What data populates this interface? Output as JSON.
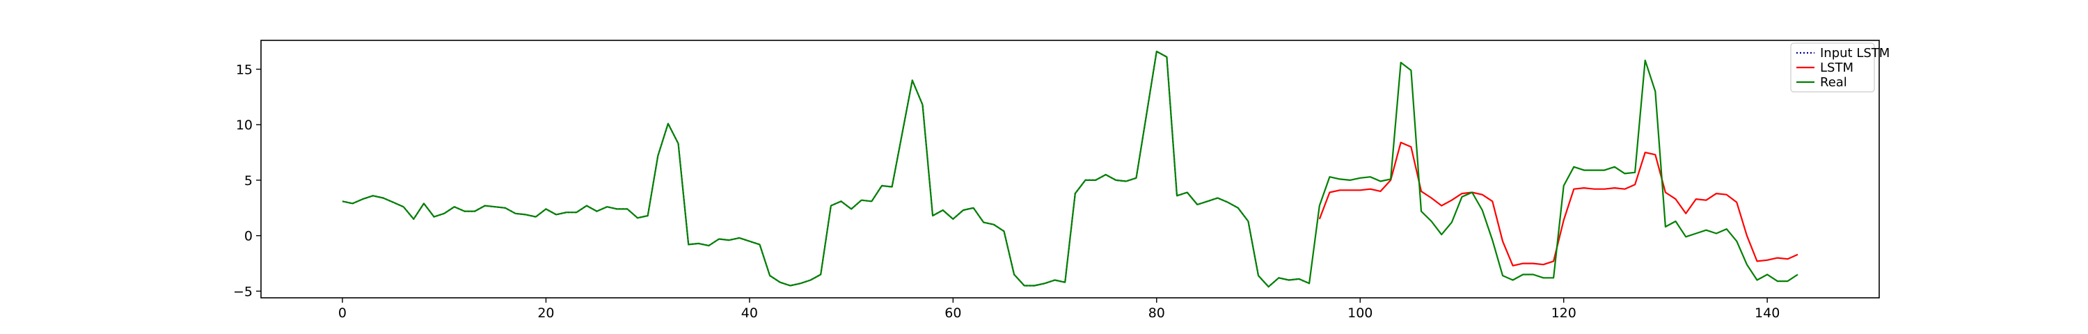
{
  "chart_data": {
    "type": "line",
    "title": "",
    "xlabel": "",
    "ylabel": "",
    "xlim": [
      -8,
      151
    ],
    "ylim": [
      -5.6,
      17.6
    ],
    "grid": false,
    "legend_position": "top-right",
    "x_ticks": [
      0,
      20,
      40,
      60,
      80,
      100,
      120,
      140
    ],
    "y_ticks": [
      -5,
      0,
      5,
      10,
      15
    ],
    "x_tick_labels": [
      "0",
      "20",
      "40",
      "60",
      "80",
      "100",
      "120",
      "140"
    ],
    "y_tick_labels": [
      "−5",
      "0",
      "5",
      "10",
      "15"
    ],
    "series": [
      {
        "name": "Input LSTM",
        "color": "#00008b",
        "style": "dotted",
        "x": [
          0,
          1,
          2,
          3,
          4,
          5,
          6,
          7,
          8,
          9,
          10,
          11,
          12,
          13,
          14,
          15,
          16,
          17,
          18,
          19,
          20,
          21,
          22,
          23,
          24,
          25,
          26,
          27,
          28,
          29,
          30,
          31,
          32,
          33,
          34,
          35,
          36,
          37,
          38,
          39,
          40,
          41,
          42,
          43,
          44,
          45,
          46,
          47,
          48,
          49,
          50,
          51,
          52,
          53,
          54,
          55,
          56,
          57,
          58,
          59,
          60,
          61,
          62,
          63,
          64,
          65,
          66,
          67,
          68,
          69,
          70,
          71,
          72,
          73,
          74,
          75,
          76,
          77,
          78,
          79,
          80,
          81,
          82,
          83,
          84,
          85,
          86,
          87,
          88,
          89,
          90,
          91,
          92,
          93,
          94,
          95
        ],
        "values": [
          3.1,
          2.9,
          3.3,
          3.6,
          3.4,
          3.0,
          2.6,
          1.5,
          2.9,
          1.7,
          2.0,
          2.6,
          2.2,
          2.2,
          2.7,
          2.6,
          2.5,
          2.0,
          1.9,
          1.7,
          2.4,
          1.9,
          2.1,
          2.1,
          2.7,
          2.2,
          2.6,
          2.4,
          2.4,
          1.6,
          1.8,
          7.2,
          10.1,
          8.3,
          -0.8,
          -0.7,
          -0.9,
          -0.3,
          -0.4,
          -0.2,
          -0.5,
          -0.8,
          -3.6,
          -4.2,
          -4.5,
          -4.3,
          -4.0,
          -3.5,
          2.7,
          3.1,
          2.4,
          3.2,
          3.1,
          4.5,
          4.4,
          9.2,
          14.0,
          11.8,
          1.8,
          2.3,
          1.5,
          2.3,
          2.5,
          1.2,
          1.0,
          0.4,
          -3.5,
          -4.5,
          -4.5,
          -4.3,
          -4.0,
          -4.2,
          3.8,
          5.0,
          5.0,
          5.5,
          5.0,
          4.9,
          5.2,
          10.9,
          16.6,
          16.1,
          3.6,
          3.9,
          2.8,
          3.1,
          3.4,
          3.0,
          2.5,
          1.3,
          -3.6,
          -4.6,
          -3.8,
          -4.0,
          -3.9,
          -4.3
        ]
      },
      {
        "name": "LSTM",
        "color": "#ff0000",
        "style": "solid",
        "x": [
          96,
          97,
          98,
          99,
          100,
          101,
          102,
          103,
          104,
          105,
          106,
          107,
          108,
          109,
          110,
          111,
          112,
          113,
          114,
          115,
          116,
          117,
          118,
          119,
          120,
          121,
          122,
          123,
          124,
          125,
          126,
          127,
          128,
          129,
          130,
          131,
          132,
          133,
          134,
          135,
          136,
          137,
          138,
          139,
          140,
          141,
          142,
          143
        ],
        "values": [
          1.5,
          3.9,
          4.1,
          4.1,
          4.1,
          4.2,
          4.0,
          5.0,
          8.4,
          8.0,
          4.0,
          3.4,
          2.7,
          3.2,
          3.8,
          3.9,
          3.7,
          3.1,
          -0.5,
          -2.7,
          -2.5,
          -2.5,
          -2.6,
          -2.3,
          1.4,
          4.2,
          4.3,
          4.2,
          4.2,
          4.3,
          4.2,
          4.6,
          7.5,
          7.3,
          3.9,
          3.3,
          2.0,
          3.3,
          3.2,
          3.8,
          3.7,
          3.0,
          0.0,
          -2.3,
          -2.2,
          -2.0,
          -2.1,
          -1.7
        ]
      },
      {
        "name": "Real",
        "color": "#008000",
        "style": "solid",
        "x": [
          0,
          1,
          2,
          3,
          4,
          5,
          6,
          7,
          8,
          9,
          10,
          11,
          12,
          13,
          14,
          15,
          16,
          17,
          18,
          19,
          20,
          21,
          22,
          23,
          24,
          25,
          26,
          27,
          28,
          29,
          30,
          31,
          32,
          33,
          34,
          35,
          36,
          37,
          38,
          39,
          40,
          41,
          42,
          43,
          44,
          45,
          46,
          47,
          48,
          49,
          50,
          51,
          52,
          53,
          54,
          55,
          56,
          57,
          58,
          59,
          60,
          61,
          62,
          63,
          64,
          65,
          66,
          67,
          68,
          69,
          70,
          71,
          72,
          73,
          74,
          75,
          76,
          77,
          78,
          79,
          80,
          81,
          82,
          83,
          84,
          85,
          86,
          87,
          88,
          89,
          90,
          91,
          92,
          93,
          94,
          95,
          96,
          97,
          98,
          99,
          100,
          101,
          102,
          103,
          104,
          105,
          106,
          107,
          108,
          109,
          110,
          111,
          112,
          113,
          114,
          115,
          116,
          117,
          118,
          119,
          120,
          121,
          122,
          123,
          124,
          125,
          126,
          127,
          128,
          129,
          130,
          131,
          132,
          133,
          134,
          135,
          136,
          137,
          138,
          139,
          140,
          141,
          142,
          143
        ],
        "values": [
          3.1,
          2.9,
          3.3,
          3.6,
          3.4,
          3.0,
          2.6,
          1.5,
          2.9,
          1.7,
          2.0,
          2.6,
          2.2,
          2.2,
          2.7,
          2.6,
          2.5,
          2.0,
          1.9,
          1.7,
          2.4,
          1.9,
          2.1,
          2.1,
          2.7,
          2.2,
          2.6,
          2.4,
          2.4,
          1.6,
          1.8,
          7.2,
          10.1,
          8.3,
          -0.8,
          -0.7,
          -0.9,
          -0.3,
          -0.4,
          -0.2,
          -0.5,
          -0.8,
          -3.6,
          -4.2,
          -4.5,
          -4.3,
          -4.0,
          -3.5,
          2.7,
          3.1,
          2.4,
          3.2,
          3.1,
          4.5,
          4.4,
          9.2,
          14.0,
          11.8,
          1.8,
          2.3,
          1.5,
          2.3,
          2.5,
          1.2,
          1.0,
          0.4,
          -3.5,
          -4.5,
          -4.5,
          -4.3,
          -4.0,
          -4.2,
          3.8,
          5.0,
          5.0,
          5.5,
          5.0,
          4.9,
          5.2,
          10.9,
          16.6,
          16.1,
          3.6,
          3.9,
          2.8,
          3.1,
          3.4,
          3.0,
          2.5,
          1.3,
          -3.6,
          -4.6,
          -3.8,
          -4.0,
          -3.9,
          -4.3,
          2.7,
          5.3,
          5.1,
          5.0,
          5.2,
          5.3,
          4.9,
          5.1,
          15.6,
          14.9,
          2.2,
          1.3,
          0.1,
          1.2,
          3.5,
          3.9,
          2.3,
          -0.4,
          -3.6,
          -4.0,
          -3.5,
          -3.5,
          -3.8,
          -3.8,
          4.5,
          6.2,
          5.9,
          5.9,
          5.9,
          6.2,
          5.6,
          5.7,
          15.8,
          13.0,
          0.8,
          1.3,
          -0.1,
          0.2,
          0.5,
          0.2,
          0.6,
          -0.5,
          -2.6,
          -4.0,
          -3.5,
          -4.1,
          -4.1,
          -3.5
        ]
      }
    ],
    "legend": [
      {
        "label": "Input LSTM",
        "color": "#00008b",
        "style": "dotted"
      },
      {
        "label": "LSTM",
        "color": "#ff0000",
        "style": "solid"
      },
      {
        "label": "Real",
        "color": "#008000",
        "style": "solid"
      }
    ]
  }
}
